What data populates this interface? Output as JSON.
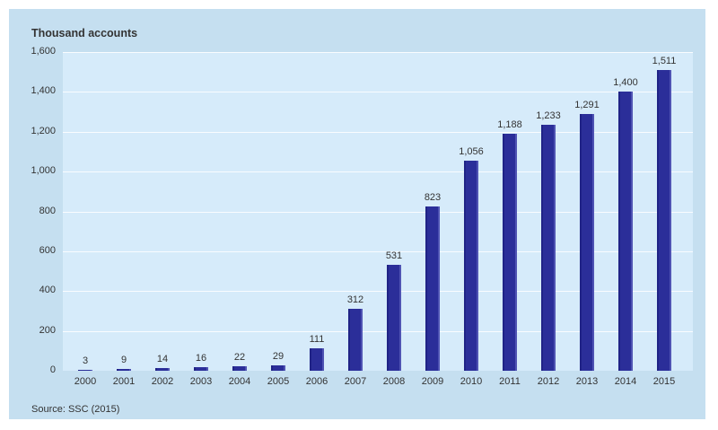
{
  "header": {
    "title": "Thousand accounts"
  },
  "footer": {
    "source": "Source: SSC  (2015)"
  },
  "colors": {
    "page_bg": "#ffffff",
    "panel_bg": "#c5dff0",
    "plot_bg": "#d6ebfa",
    "bar": "#2b2e99",
    "gridline": "#ffffff",
    "text": "#333333"
  },
  "chart_data": {
    "type": "bar",
    "title": "Thousand accounts",
    "categories": [
      "2000",
      "2001",
      "2002",
      "2003",
      "2004",
      "2005",
      "2006",
      "2007",
      "2008",
      "2009",
      "2010",
      "2011",
      "2012",
      "2013",
      "2014",
      "2015"
    ],
    "values": [
      3,
      9,
      14,
      16,
      22,
      29,
      111,
      312,
      531,
      823,
      1056,
      1188,
      1233,
      1291,
      1400,
      1511
    ],
    "value_labels": [
      "3",
      "9",
      "14",
      "16",
      "22",
      "29",
      "111",
      "312",
      "531",
      "823",
      "1,056",
      "1,188",
      "1,233",
      "1,291",
      "1,400",
      "1,511"
    ],
    "xlabel": "",
    "ylabel": "Thousand accounts",
    "ylim": [
      0,
      1600
    ],
    "yticks": [
      0,
      200,
      400,
      600,
      800,
      1000,
      1200,
      1400,
      1600
    ],
    "ytick_labels": [
      "0",
      "200",
      "400",
      "600",
      "800",
      "1,000",
      "1,200",
      "1,400",
      "1,600"
    ],
    "grid": true,
    "legend": false,
    "data_labels": true,
    "source": "Source: SSC  (2015)"
  }
}
